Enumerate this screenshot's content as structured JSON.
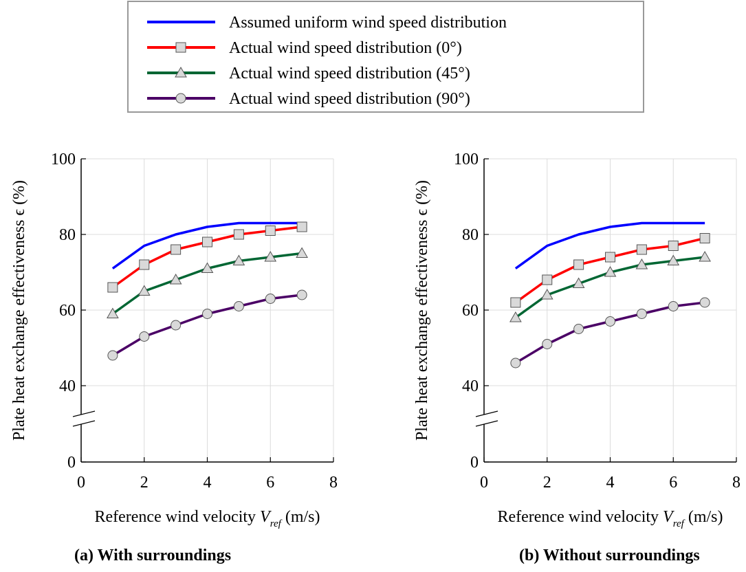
{
  "legend": [
    {
      "label": "Assumed uniform wind speed distribution",
      "color": "#0000ff",
      "marker": "none"
    },
    {
      "label": "Actual wind speed distribution (0°)",
      "color": "#ff0000",
      "marker": "square"
    },
    {
      "label": "Actual wind speed distribution (45°)",
      "color": "#006633",
      "marker": "triangle"
    },
    {
      "label": "Actual wind speed distribution (90°)",
      "color": "#4b0066",
      "marker": "circle"
    }
  ],
  "marker_fill": "#d9d9d9",
  "chart_data": [
    {
      "type": "line",
      "caption": "(a)  With surroundings",
      "ylabel": "Plate heat exchange effectiveness ϵ  (%)",
      "xlabel_prefix": "Reference wind velocity ",
      "xlabel_var": "V",
      "xlabel_sub": "ref",
      "xlabel_suffix": " (m/s)",
      "x": [
        1,
        2,
        3,
        4,
        5,
        6,
        7
      ],
      "xlim": [
        0,
        8
      ],
      "xticks": [
        "0",
        "2",
        "4",
        "6",
        "8"
      ],
      "ylim": [
        0,
        100
      ],
      "yticks": [
        "0",
        "40",
        "60",
        "80",
        "100"
      ],
      "axis_break": "between 0 and 40",
      "grid": true,
      "series": [
        {
          "name": "Assumed uniform wind speed distribution",
          "values": [
            71,
            77,
            80,
            82,
            83,
            83,
            83
          ]
        },
        {
          "name": "Actual wind speed distribution (0°)",
          "values": [
            66,
            72,
            76,
            78,
            80,
            81,
            82
          ]
        },
        {
          "name": "Actual wind speed distribution (45°)",
          "values": [
            59,
            65,
            68,
            71,
            73,
            74,
            75
          ]
        },
        {
          "name": "Actual wind speed distribution (90°)",
          "values": [
            48,
            53,
            56,
            59,
            61,
            63,
            64
          ]
        }
      ]
    },
    {
      "type": "line",
      "caption": "(b)  Without surroundings",
      "ylabel": "Plate heat exchange effectiveness ϵ  (%)",
      "xlabel_prefix": "Reference wind velocity ",
      "xlabel_var": "V",
      "xlabel_sub": "ref",
      "xlabel_suffix": " (m/s)",
      "x": [
        1,
        2,
        3,
        4,
        5,
        6,
        7
      ],
      "xlim": [
        0,
        8
      ],
      "xticks": [
        "0",
        "2",
        "4",
        "6",
        "8"
      ],
      "ylim": [
        0,
        100
      ],
      "yticks": [
        "0",
        "40",
        "60",
        "80",
        "100"
      ],
      "axis_break": "between 0 and 40",
      "grid": true,
      "series": [
        {
          "name": "Assumed uniform wind speed distribution",
          "values": [
            71,
            77,
            80,
            82,
            83,
            83,
            83
          ]
        },
        {
          "name": "Actual wind speed distribution (0°)",
          "values": [
            62,
            68,
            72,
            74,
            76,
            77,
            79
          ]
        },
        {
          "name": "Actual wind speed distribution (45°)",
          "values": [
            58,
            64,
            67,
            70,
            72,
            73,
            74
          ]
        },
        {
          "name": "Actual wind speed distribution (90°)",
          "values": [
            46,
            51,
            55,
            57,
            59,
            61,
            62
          ]
        }
      ]
    }
  ]
}
